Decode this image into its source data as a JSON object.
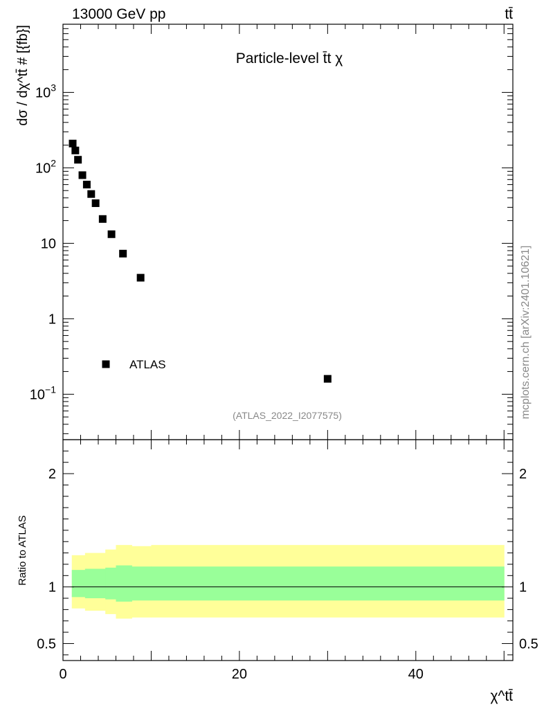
{
  "header": {
    "energy_label": "13000 GeV pp",
    "process_label": "tt̄"
  },
  "side_label": "mcplots.cern.ch [arXiv:2401.10621]",
  "chart_data": [
    {
      "type": "scatter",
      "title": "Particle-level t̄t χ",
      "analysis_label": "(ATLAS_2022_I2077575)",
      "xlabel": "χ^tt̄",
      "ylabel": "dσ / dχ^tt̄ # [{fb}]",
      "xlim": [
        0,
        51
      ],
      "ylim": [
        0.025,
        8000
      ],
      "log_y": true,
      "legend": {
        "placement": "bottom-left",
        "entries": [
          "ATLAS"
        ]
      },
      "series": [
        {
          "name": "ATLAS",
          "marker": "square",
          "color": "#000000",
          "x": [
            1.1,
            1.4,
            1.7,
            2.2,
            2.7,
            3.2,
            3.7,
            4.5,
            5.5,
            6.8,
            8.8,
            30.0
          ],
          "y": [
            210,
            170,
            128,
            80,
            60,
            45,
            34,
            21,
            13.2,
            7.3,
            3.5,
            0.16
          ]
        }
      ],
      "y_ticks": [
        {
          "value": 0.1,
          "label": "10",
          "exp": "−1"
        },
        {
          "value": 1,
          "label": "1",
          "exp": ""
        },
        {
          "value": 10,
          "label": "10",
          "exp": ""
        },
        {
          "value": 100,
          "label": "10",
          "exp": "2"
        },
        {
          "value": 1000,
          "label": "10",
          "exp": "3"
        }
      ]
    },
    {
      "type": "area",
      "ylabel": "Ratio to ATLAS",
      "xlim": [
        0,
        51
      ],
      "ylim": [
        0.35,
        2.3
      ],
      "x_ticks": [
        {
          "value": 0,
          "label": "0"
        },
        {
          "value": 20,
          "label": "20"
        },
        {
          "value": 40,
          "label": "40"
        }
      ],
      "y_ticks": [
        {
          "value": 0.5,
          "label": "0.5"
        },
        {
          "value": 1,
          "label": "1"
        },
        {
          "value": 2,
          "label": "2"
        }
      ],
      "reference_line": 1,
      "bin_edges": [
        1,
        2.5,
        4.8,
        6.0,
        7.8,
        10,
        50
      ],
      "bands": [
        {
          "name": "outer",
          "color": "#ffff99",
          "upper": [
            1.28,
            1.3,
            1.33,
            1.37,
            1.36,
            1.37
          ],
          "lower": [
            0.81,
            0.79,
            0.76,
            0.72,
            0.73,
            0.73
          ]
        },
        {
          "name": "inner",
          "color": "#99ff99",
          "upper": [
            1.15,
            1.16,
            1.17,
            1.19,
            1.18,
            1.18
          ],
          "lower": [
            0.91,
            0.9,
            0.89,
            0.87,
            0.88,
            0.88
          ]
        }
      ]
    }
  ]
}
